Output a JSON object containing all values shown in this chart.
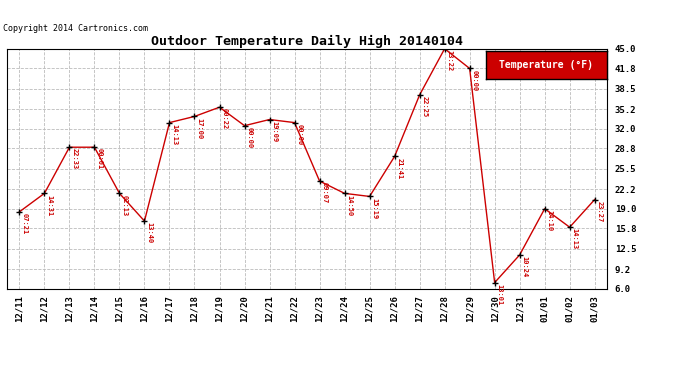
{
  "title": "Outdoor Temperature Daily High 20140104",
  "copyright": "Copyright 2014 Cartronics.com",
  "legend_label": "Temperature (°F)",
  "dates": [
    "12/11",
    "12/12",
    "12/13",
    "12/14",
    "12/15",
    "12/16",
    "12/17",
    "12/18",
    "12/19",
    "12/20",
    "12/21",
    "12/22",
    "12/23",
    "12/24",
    "12/25",
    "12/26",
    "12/27",
    "12/28",
    "12/29",
    "12/30",
    "12/31",
    "01/01",
    "01/02",
    "01/03"
  ],
  "temps": [
    18.5,
    21.5,
    29.0,
    29.0,
    21.5,
    17.0,
    33.0,
    34.0,
    35.5,
    32.5,
    33.5,
    33.0,
    23.5,
    21.5,
    21.0,
    27.5,
    37.5,
    45.0,
    41.8,
    7.0,
    11.5,
    19.0,
    16.0,
    20.5
  ],
  "annotations": [
    "07:21",
    "14:31",
    "22:33",
    "00:01",
    "02:13",
    "13:40",
    "14:13",
    "17:00",
    "00:22",
    "00:00",
    "19:09",
    "00:00",
    "09:07",
    "14:50",
    "15:19",
    "21:41",
    "22:25",
    "13:22",
    "00:00",
    "13:01",
    "10:24",
    "14:10",
    "14:13",
    "23:27"
  ],
  "ylim": [
    6.0,
    45.0
  ],
  "yticks": [
    6.0,
    9.2,
    12.5,
    15.8,
    19.0,
    22.2,
    25.5,
    28.8,
    32.0,
    35.2,
    38.5,
    41.8,
    45.0
  ],
  "line_color": "#cc0000",
  "marker_color": "#000000",
  "annotation_color": "#cc0000",
  "bg_color": "#ffffff",
  "grid_color": "#bbbbbb",
  "title_color": "#000000",
  "copyright_color": "#000000",
  "legend_bg": "#cc0000",
  "legend_text_color": "#ffffff",
  "figsize": [
    6.9,
    3.75
  ],
  "dpi": 100
}
